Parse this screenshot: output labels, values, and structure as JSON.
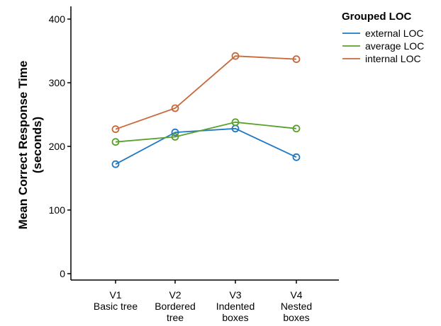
{
  "chart_data": {
    "type": "line",
    "categories": [
      [
        "V1",
        "Basic tree"
      ],
      [
        "V2",
        "Bordered",
        "tree"
      ],
      [
        "V3",
        "Indented",
        "boxes"
      ],
      [
        "V4",
        "Nested",
        "boxes"
      ]
    ],
    "series": [
      {
        "name": "external LOC",
        "color": "#1f78c4",
        "values": [
          172,
          222,
          228,
          183
        ]
      },
      {
        "name": "average LOC",
        "color": "#5aa02c",
        "values": [
          207,
          215,
          238,
          228
        ]
      },
      {
        "name": "internal LOC",
        "color": "#c8693a",
        "values": [
          227,
          260,
          342,
          337
        ]
      }
    ],
    "ylabel": [
      "Mean Correct Response Time",
      "(seconds)"
    ],
    "ylim": [
      -10,
      420
    ],
    "yticks": [
      0,
      100,
      200,
      300,
      400
    ],
    "legend": {
      "title": "Grouped LOC",
      "position": "top-right"
    },
    "grid": false
  }
}
